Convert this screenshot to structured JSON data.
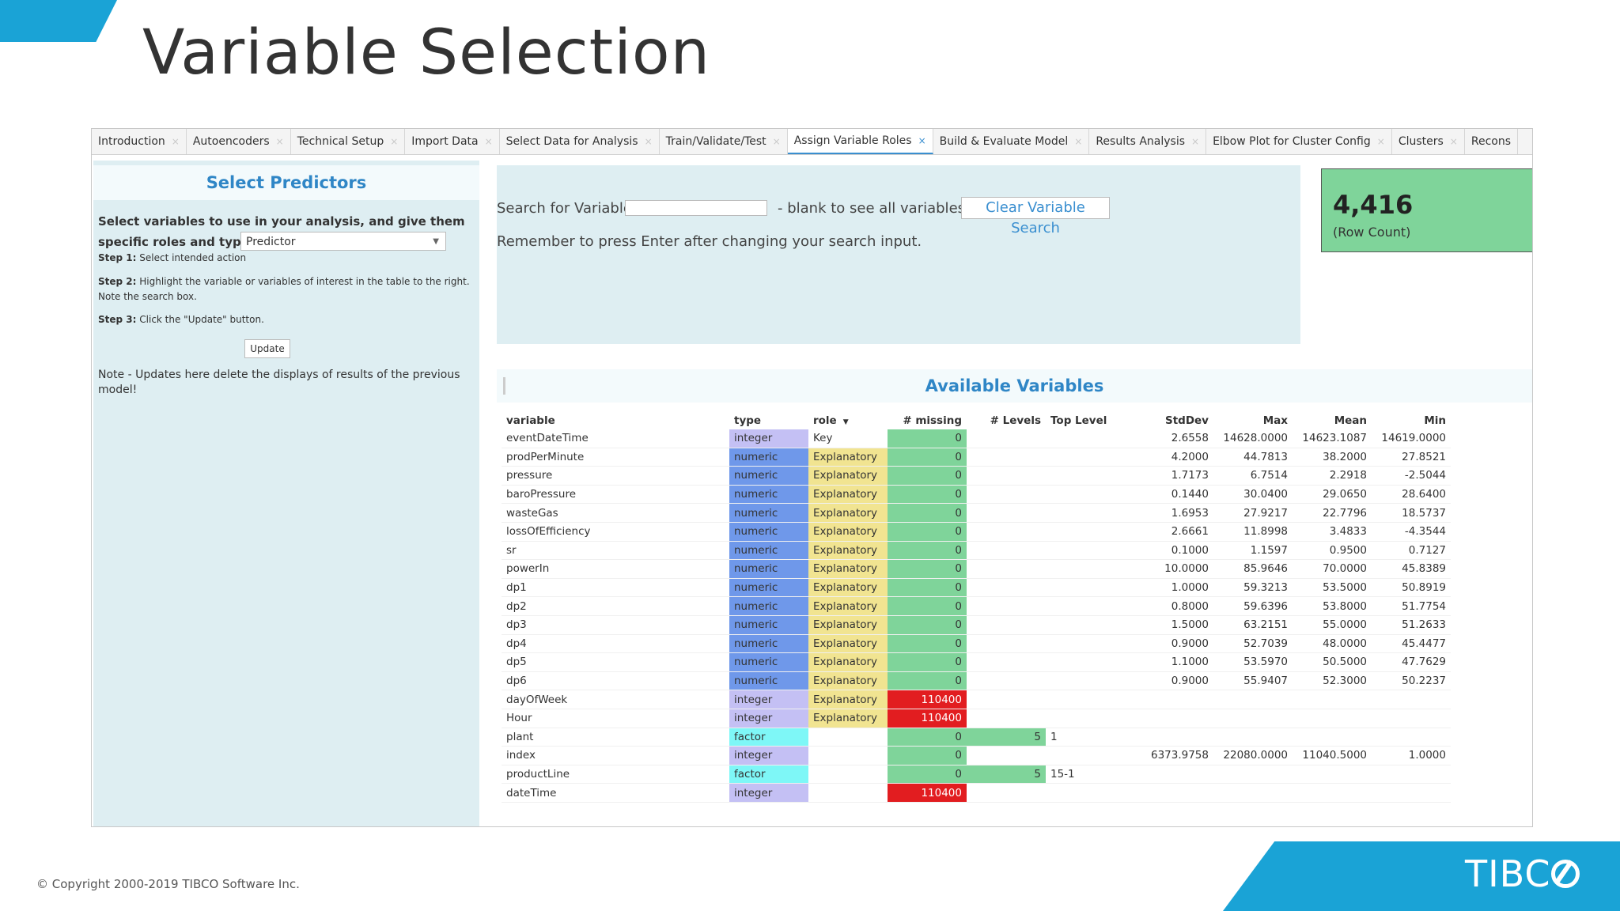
{
  "slide_title": "Variable Selection",
  "tabs": [
    {
      "label": "Introduction",
      "active": false
    },
    {
      "label": "Autoencoders",
      "active": false
    },
    {
      "label": "Technical Setup",
      "active": false
    },
    {
      "label": "Import Data",
      "active": false
    },
    {
      "label": "Select Data for Analysis",
      "active": false
    },
    {
      "label": "Train/Validate/Test",
      "active": false
    },
    {
      "label": "Assign Variable Roles",
      "active": true
    },
    {
      "label": "Build & Evaluate Model",
      "active": false
    },
    {
      "label": "Results Analysis",
      "active": false
    },
    {
      "label": "Elbow Plot for Cluster Config",
      "active": false
    },
    {
      "label": "Clusters",
      "active": false
    },
    {
      "label": "Recons",
      "active": false
    }
  ],
  "left_panel": {
    "title": "Select Predictors",
    "description": "Select variables to use in your analysis, and give them specific roles and types for each variable.",
    "step1_label": "Step 1:",
    "step1_text": "Select intended action",
    "action_value": "Predictor",
    "step2_label": "Step 2:",
    "step2_text": "Highlight the variable or variables of interest in the table to the right. Note the search box.",
    "step3_label": "Step 3:",
    "step3_text": "Click the \"Update\" button.",
    "update_label": "Update",
    "note": "Note - Updates here delete the displays of results of the previous model!"
  },
  "search": {
    "label": "Search for Variable:",
    "value": "",
    "blank_label": "- blank to see all variables:",
    "clear_label": "Clear Variable Search",
    "remember": "Remember to press Enter after changing your search input."
  },
  "row_count": {
    "value": "4,416",
    "label": "(Row Count)"
  },
  "available_title": "Available Variables",
  "table": {
    "headers": [
      "variable",
      "type",
      "role",
      "# missing",
      "# Levels",
      "Top Level",
      "StdDev",
      "Max",
      "Mean",
      "Min"
    ],
    "rows": [
      [
        "eventDateTime",
        "integer",
        "Key",
        "0",
        "",
        "",
        "2.6558",
        "14628.0000",
        "14623.1087",
        "14619.0000"
      ],
      [
        "prodPerMinute",
        "numeric",
        "Explanatory",
        "0",
        "",
        "",
        "4.2000",
        "44.7813",
        "38.2000",
        "27.8521"
      ],
      [
        "pressure",
        "numeric",
        "Explanatory",
        "0",
        "",
        "",
        "1.7173",
        "6.7514",
        "2.2918",
        "-2.5044"
      ],
      [
        "baroPressure",
        "numeric",
        "Explanatory",
        "0",
        "",
        "",
        "0.1440",
        "30.0400",
        "29.0650",
        "28.6400"
      ],
      [
        "wasteGas",
        "numeric",
        "Explanatory",
        "0",
        "",
        "",
        "1.6953",
        "27.9217",
        "22.7796",
        "18.5737"
      ],
      [
        "lossOfEfficiency",
        "numeric",
        "Explanatory",
        "0",
        "",
        "",
        "2.6661",
        "11.8998",
        "3.4833",
        "-4.3544"
      ],
      [
        "sr",
        "numeric",
        "Explanatory",
        "0",
        "",
        "",
        "0.1000",
        "1.1597",
        "0.9500",
        "0.7127"
      ],
      [
        "powerIn",
        "numeric",
        "Explanatory",
        "0",
        "",
        "",
        "10.0000",
        "85.9646",
        "70.0000",
        "45.8389"
      ],
      [
        "dp1",
        "numeric",
        "Explanatory",
        "0",
        "",
        "",
        "1.0000",
        "59.3213",
        "53.5000",
        "50.8919"
      ],
      [
        "dp2",
        "numeric",
        "Explanatory",
        "0",
        "",
        "",
        "0.8000",
        "59.6396",
        "53.8000",
        "51.7754"
      ],
      [
        "dp3",
        "numeric",
        "Explanatory",
        "0",
        "",
        "",
        "1.5000",
        "63.2151",
        "55.0000",
        "51.2633"
      ],
      [
        "dp4",
        "numeric",
        "Explanatory",
        "0",
        "",
        "",
        "0.9000",
        "52.7039",
        "48.0000",
        "45.4477"
      ],
      [
        "dp5",
        "numeric",
        "Explanatory",
        "0",
        "",
        "",
        "1.1000",
        "53.5970",
        "50.5000",
        "47.7629"
      ],
      [
        "dp6",
        "numeric",
        "Explanatory",
        "0",
        "",
        "",
        "0.9000",
        "55.9407",
        "52.3000",
        "50.2237"
      ],
      [
        "dayOfWeek",
        "integer",
        "Explanatory",
        "110400",
        "",
        "",
        "",
        "",
        "",
        ""
      ],
      [
        "Hour",
        "integer",
        "Explanatory",
        "110400",
        "",
        "",
        "",
        "",
        "",
        ""
      ],
      [
        "plant",
        "factor",
        "",
        "0",
        "5",
        "1",
        "",
        "",
        "",
        ""
      ],
      [
        "index",
        "integer",
        "",
        "0",
        "",
        "",
        "6373.9758",
        "22080.0000",
        "11040.5000",
        "1.0000"
      ],
      [
        "productLine",
        "factor",
        "",
        "0",
        "5",
        "15-1",
        "",
        "",
        "",
        ""
      ],
      [
        "dateTime",
        "integer",
        "",
        "110400",
        "",
        "",
        "",
        "",
        "",
        ""
      ]
    ]
  },
  "colors": {
    "accent": "#1aa3d6",
    "integer": "#c4c0f4",
    "numeric": "#6f98ea",
    "factor": "#7ef7f7",
    "explanatory": "#f1e491",
    "ok": "#7fd49a",
    "missing": "#e21d20"
  },
  "footer": {
    "copyright": "© Copyright 2000-2019 TIBCO Software Inc.",
    "logo_text": "TIBC"
  }
}
